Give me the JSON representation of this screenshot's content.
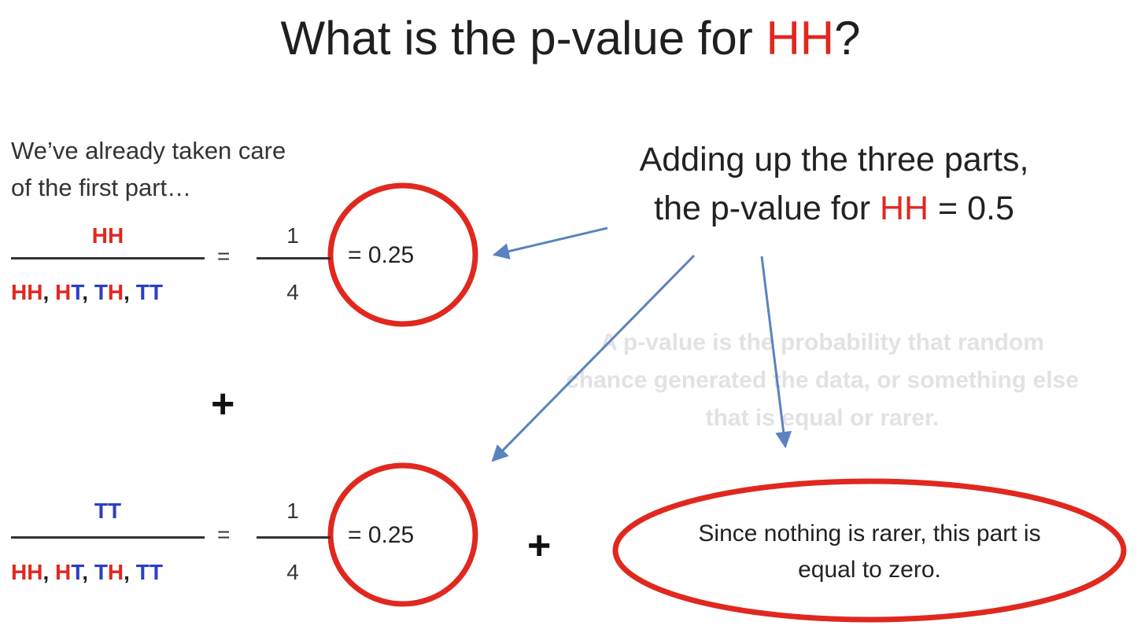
{
  "title": {
    "prefix": "What is the p-value for ",
    "highlight": "HH",
    "suffix": "?"
  },
  "intro": {
    "line1": "We’ve already taken care",
    "line2": "of the first part…"
  },
  "summary": {
    "line1": "Adding up the three parts,",
    "line2_prefix": "the p-value for ",
    "line2_highlight": "HH",
    "line2_suffix": " = 0.5"
  },
  "definition": {
    "line1": "A p-value is the probability that random",
    "line2": "chance generated the data, or something else",
    "line3": "that is equal or rarer."
  },
  "fraction1": {
    "numerator": "HH",
    "outcomes": [
      "HH",
      "HT",
      "TH",
      "TT"
    ],
    "separator": ", ",
    "equals": "=",
    "num": "1",
    "den": "4",
    "result": "= 0.25"
  },
  "plus_sign": "+",
  "fraction2": {
    "numerator": "TT",
    "outcomes": [
      "HH",
      "HT",
      "TH",
      "TT"
    ],
    "separator": ", ",
    "equals": "=",
    "num": "1",
    "den": "4",
    "result": "= 0.25"
  },
  "plus_sign2": "+",
  "note": {
    "line1": "Since nothing is rarer, this part is",
    "line2": "equal to zero."
  },
  "colors": {
    "heads": "#e0281f",
    "tails": "#2a3fc4",
    "circle": "#e0281f",
    "arrow": "#5b82c0"
  }
}
